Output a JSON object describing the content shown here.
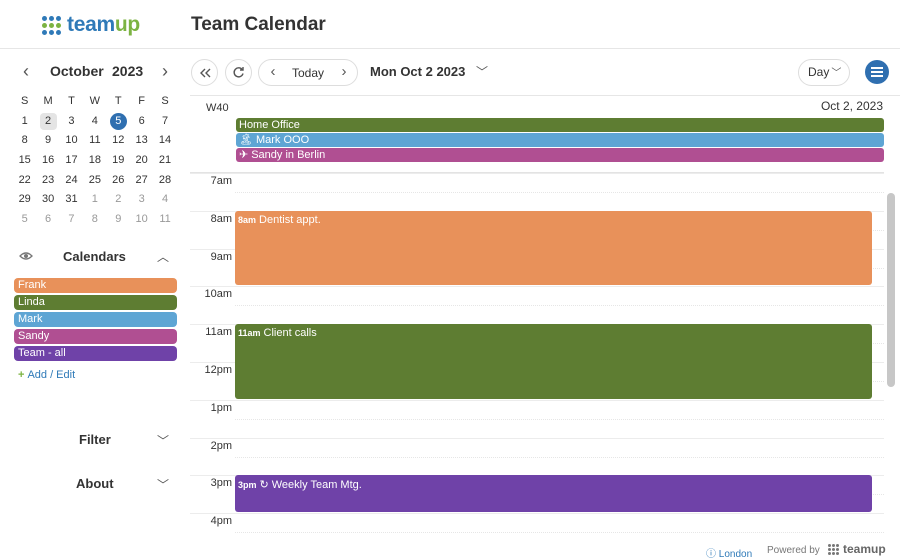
{
  "app": {
    "logo_prefix": "team",
    "logo_suffix": "up",
    "title": "Team Calendar"
  },
  "mini_calendar": {
    "month": "October",
    "year": "2023",
    "weekdays": [
      "S",
      "M",
      "T",
      "W",
      "T",
      "F",
      "S"
    ],
    "weeks": [
      [
        {
          "d": "1"
        },
        {
          "d": "2",
          "sel": true
        },
        {
          "d": "3"
        },
        {
          "d": "4"
        },
        {
          "d": "5",
          "today": true
        },
        {
          "d": "6"
        },
        {
          "d": "7"
        }
      ],
      [
        {
          "d": "8"
        },
        {
          "d": "9"
        },
        {
          "d": "10"
        },
        {
          "d": "11"
        },
        {
          "d": "12"
        },
        {
          "d": "13"
        },
        {
          "d": "14"
        }
      ],
      [
        {
          "d": "15"
        },
        {
          "d": "16"
        },
        {
          "d": "17"
        },
        {
          "d": "18"
        },
        {
          "d": "19"
        },
        {
          "d": "20"
        },
        {
          "d": "21"
        }
      ],
      [
        {
          "d": "22"
        },
        {
          "d": "23"
        },
        {
          "d": "24"
        },
        {
          "d": "25"
        },
        {
          "d": "26"
        },
        {
          "d": "27"
        },
        {
          "d": "28"
        }
      ],
      [
        {
          "d": "29"
        },
        {
          "d": "30"
        },
        {
          "d": "31"
        },
        {
          "d": "1",
          "other": true
        },
        {
          "d": "2",
          "other": true
        },
        {
          "d": "3",
          "other": true
        },
        {
          "d": "4",
          "other": true
        }
      ],
      [
        {
          "d": "5",
          "other": true
        },
        {
          "d": "6",
          "other": true
        },
        {
          "d": "7",
          "other": true
        },
        {
          "d": "8",
          "other": true
        },
        {
          "d": "9",
          "other": true
        },
        {
          "d": "10",
          "other": true
        },
        {
          "d": "11",
          "other": true
        }
      ]
    ]
  },
  "calendars": {
    "heading": "Calendars",
    "items": [
      {
        "name": "Frank",
        "color": "#e8915a"
      },
      {
        "name": "Linda",
        "color": "#5e7d32"
      },
      {
        "name": "Mark",
        "color": "#5ea5d4"
      },
      {
        "name": "Sandy",
        "color": "#b04f92"
      },
      {
        "name": "Team - all",
        "color": "#6f42a8"
      }
    ],
    "add_edit": "Add / Edit"
  },
  "filter_label": "Filter",
  "about_label": "About",
  "toolbar": {
    "today_label": "Today",
    "date_label": "Mon Oct 2 2023",
    "view_label": "Day"
  },
  "day_view": {
    "week_label": "W40",
    "date_label": "Oct 2, 2023",
    "all_day_events": [
      {
        "title": "Home Office",
        "color": "#5e7d32",
        "icon": ""
      },
      {
        "title": "Mark OOO",
        "color": "#5ea5d4",
        "icon": "🏝"
      },
      {
        "title": "Sandy in Berlin",
        "color": "#b04f92",
        "icon": "✈"
      }
    ],
    "hours": [
      "7am",
      "8am",
      "9am",
      "10am",
      "11am",
      "12pm",
      "1pm",
      "2pm",
      "3pm",
      "4pm"
    ],
    "events": [
      {
        "time": "8am",
        "title": "Dentist appt.",
        "color": "#e8915a",
        "start_hour": 8,
        "duration_hours": 2,
        "icon": ""
      },
      {
        "time": "11am",
        "title": "Client calls",
        "color": "#5e7d32",
        "start_hour": 11,
        "duration_hours": 2,
        "icon": ""
      },
      {
        "time": "3pm",
        "title": "Weekly Team Mtg.",
        "color": "#6f42a8",
        "start_hour": 15,
        "duration_hours": 1,
        "icon": "repeat-icon"
      }
    ]
  },
  "footer": {
    "location": "London",
    "powered_by": "Powered by",
    "brand": "teamup"
  }
}
